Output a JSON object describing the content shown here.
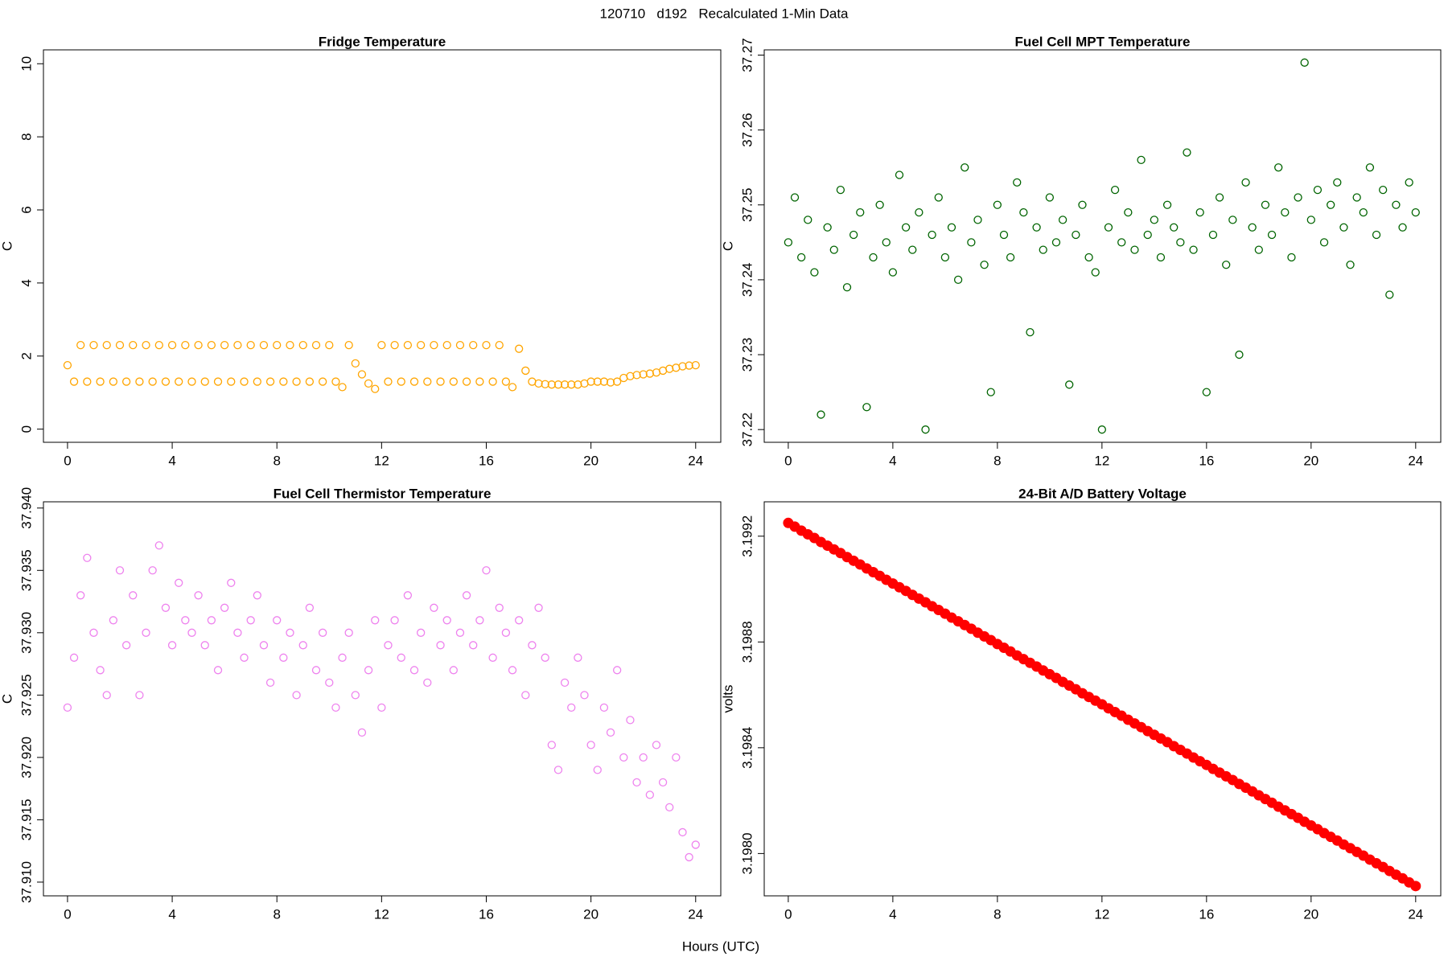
{
  "title": "120710   d192   Recalculated 1-Min Data",
  "x_label": "Hours (UTC)",
  "chart_data": [
    {
      "type": "scatter",
      "title": "Fridge Temperature",
      "y_label": "C",
      "color": "#ffa500",
      "xlim": [
        -0.92,
        24.96
      ],
      "xticks": [
        0,
        4,
        8,
        12,
        16,
        20,
        24
      ],
      "ylim": [
        -0.36,
        10.38
      ],
      "yticks": [
        0,
        2,
        4,
        6,
        8,
        10
      ],
      "x": [
        0,
        0.25,
        0.5,
        0.75,
        1,
        1.25,
        1.5,
        1.75,
        2,
        2.25,
        2.5,
        2.75,
        3,
        3.25,
        3.5,
        3.75,
        4,
        4.25,
        4.5,
        4.75,
        5,
        5.25,
        5.5,
        5.75,
        6,
        6.25,
        6.5,
        6.75,
        7,
        7.25,
        7.5,
        7.75,
        8,
        8.25,
        8.5,
        8.75,
        9,
        9.25,
        9.5,
        9.75,
        10,
        10.25,
        10.5,
        10.75,
        11,
        11.25,
        11.5,
        11.75,
        12,
        12.25,
        12.5,
        12.75,
        13,
        13.25,
        13.5,
        13.75,
        14,
        14.25,
        14.5,
        14.75,
        15,
        15.25,
        15.5,
        15.75,
        16,
        16.25,
        16.5,
        16.75,
        17,
        17.25,
        17.5,
        17.75,
        18,
        18.25,
        18.5,
        18.75,
        19,
        19.25,
        19.5,
        19.75,
        20,
        20.25,
        20.5,
        20.75,
        21,
        21.25,
        21.5,
        21.75,
        22,
        22.25,
        22.5,
        22.75,
        23,
        23.25,
        23.5,
        23.75,
        24
      ],
      "values": [
        1.75,
        1.3,
        2.3,
        1.3,
        2.3,
        1.3,
        2.3,
        1.3,
        2.3,
        1.3,
        2.3,
        1.3,
        2.3,
        1.3,
        2.3,
        1.3,
        2.3,
        1.3,
        2.3,
        1.3,
        2.3,
        1.3,
        2.3,
        1.3,
        2.3,
        1.3,
        2.3,
        1.3,
        2.3,
        1.3,
        2.3,
        1.3,
        2.3,
        1.3,
        2.3,
        1.3,
        2.3,
        1.3,
        2.3,
        1.3,
        2.3,
        1.3,
        1.15,
        2.3,
        1.8,
        1.5,
        1.25,
        1.1,
        2.3,
        1.3,
        2.3,
        1.3,
        2.3,
        1.3,
        2.3,
        1.3,
        2.3,
        1.3,
        2.3,
        1.3,
        2.3,
        1.3,
        2.3,
        1.3,
        2.3,
        1.3,
        2.3,
        1.3,
        1.15,
        2.2,
        1.6,
        1.3,
        1.25,
        1.23,
        1.22,
        1.22,
        1.22,
        1.22,
        1.22,
        1.25,
        1.3,
        1.3,
        1.3,
        1.28,
        1.3,
        1.4,
        1.45,
        1.48,
        1.5,
        1.52,
        1.55,
        1.6,
        1.65,
        1.68,
        1.72,
        1.74,
        1.75
      ]
    },
    {
      "type": "scatter",
      "title": "Fuel Cell MPT Temperature",
      "y_label": "C",
      "color": "#006400",
      "xlim": [
        -0.92,
        24.96
      ],
      "xticks": [
        0,
        4,
        8,
        12,
        16,
        20,
        24
      ],
      "ylim": [
        37.2183,
        37.2707
      ],
      "yticks": [
        37.22,
        37.23,
        37.24,
        37.25,
        37.26,
        37.27
      ],
      "x": [
        0,
        0.25,
        0.5,
        0.75,
        1,
        1.25,
        1.5,
        1.75,
        2,
        2.25,
        2.5,
        2.75,
        3,
        3.25,
        3.5,
        3.75,
        4,
        4.25,
        4.5,
        4.75,
        5,
        5.25,
        5.5,
        5.75,
        6,
        6.25,
        6.5,
        6.75,
        7,
        7.25,
        7.5,
        7.75,
        8,
        8.25,
        8.5,
        8.75,
        9,
        9.25,
        9.5,
        9.75,
        10,
        10.25,
        10.5,
        10.75,
        11,
        11.25,
        11.5,
        11.75,
        12,
        12.25,
        12.5,
        12.75,
        13,
        13.25,
        13.5,
        13.75,
        14,
        14.25,
        14.5,
        14.75,
        15,
        15.25,
        15.5,
        15.75,
        16,
        16.25,
        16.5,
        16.75,
        17,
        17.25,
        17.5,
        17.75,
        18,
        18.25,
        18.5,
        18.75,
        19,
        19.25,
        19.5,
        19.75,
        20,
        20.25,
        20.5,
        20.75,
        21,
        21.25,
        21.5,
        21.75,
        22,
        22.25,
        22.5,
        22.75,
        23,
        23.25,
        23.5,
        23.75,
        24
      ],
      "values": [
        37.245,
        37.251,
        37.243,
        37.248,
        37.241,
        37.222,
        37.247,
        37.244,
        37.252,
        37.239,
        37.246,
        37.249,
        37.223,
        37.243,
        37.25,
        37.245,
        37.241,
        37.254,
        37.247,
        37.244,
        37.249,
        37.22,
        37.246,
        37.251,
        37.243,
        37.247,
        37.24,
        37.255,
        37.245,
        37.248,
        37.242,
        37.225,
        37.25,
        37.246,
        37.243,
        37.253,
        37.249,
        37.233,
        37.247,
        37.244,
        37.251,
        37.245,
        37.248,
        37.226,
        37.246,
        37.25,
        37.243,
        37.241,
        37.22,
        37.247,
        37.252,
        37.245,
        37.249,
        37.244,
        37.256,
        37.246,
        37.248,
        37.243,
        37.25,
        37.247,
        37.245,
        37.257,
        37.244,
        37.249,
        37.225,
        37.246,
        37.251,
        37.242,
        37.248,
        37.23,
        37.253,
        37.247,
        37.244,
        37.25,
        37.246,
        37.255,
        37.249,
        37.243,
        37.251,
        37.269,
        37.248,
        37.252,
        37.245,
        37.25,
        37.253,
        37.247,
        37.242,
        37.251,
        37.249,
        37.255,
        37.246,
        37.252,
        37.238,
        37.25,
        37.247,
        37.253,
        37.249
      ]
    },
    {
      "type": "scatter",
      "title": "Fuel Cell Thermistor Temperature",
      "y_label": "C",
      "color": "#ee82ee",
      "xlim": [
        -0.92,
        24.96
      ],
      "xticks": [
        0,
        4,
        8,
        12,
        16,
        20,
        24
      ],
      "ylim": [
        37.9089,
        37.9405
      ],
      "yticks": [
        {
          "value": 37.91,
          "label": "37.910"
        },
        37.915,
        {
          "value": 37.92,
          "label": "37.920"
        },
        37.925,
        {
          "value": 37.93,
          "label": "37.930"
        },
        37.935,
        {
          "value": 37.94,
          "label": "37.940"
        }
      ],
      "x": [
        0,
        0.25,
        0.5,
        0.75,
        1,
        1.25,
        1.5,
        1.75,
        2,
        2.25,
        2.5,
        2.75,
        3,
        3.25,
        3.5,
        3.75,
        4,
        4.25,
        4.5,
        4.75,
        5,
        5.25,
        5.5,
        5.75,
        6,
        6.25,
        6.5,
        6.75,
        7,
        7.25,
        7.5,
        7.75,
        8,
        8.25,
        8.5,
        8.75,
        9,
        9.25,
        9.5,
        9.75,
        10,
        10.25,
        10.5,
        10.75,
        11,
        11.25,
        11.5,
        11.75,
        12,
        12.25,
        12.5,
        12.75,
        13,
        13.25,
        13.5,
        13.75,
        14,
        14.25,
        14.5,
        14.75,
        15,
        15.25,
        15.5,
        15.75,
        16,
        16.25,
        16.5,
        16.75,
        17,
        17.25,
        17.5,
        17.75,
        18,
        18.25,
        18.5,
        18.75,
        19,
        19.25,
        19.5,
        19.75,
        20,
        20.25,
        20.5,
        20.75,
        21,
        21.25,
        21.5,
        21.75,
        22,
        22.25,
        22.5,
        22.75,
        23,
        23.25,
        23.5,
        23.75,
        24
      ],
      "values": [
        37.924,
        37.928,
        37.933,
        37.936,
        37.93,
        37.927,
        37.925,
        37.931,
        37.935,
        37.929,
        37.933,
        37.925,
        37.93,
        37.935,
        37.937,
        37.932,
        37.929,
        37.934,
        37.931,
        37.93,
        37.933,
        37.929,
        37.931,
        37.927,
        37.932,
        37.934,
        37.93,
        37.928,
        37.931,
        37.933,
        37.929,
        37.926,
        37.931,
        37.928,
        37.93,
        37.925,
        37.929,
        37.932,
        37.927,
        37.93,
        37.926,
        37.924,
        37.928,
        37.93,
        37.925,
        37.922,
        37.927,
        37.931,
        37.924,
        37.929,
        37.931,
        37.928,
        37.933,
        37.927,
        37.93,
        37.926,
        37.932,
        37.929,
        37.931,
        37.927,
        37.93,
        37.933,
        37.929,
        37.931,
        37.935,
        37.928,
        37.932,
        37.93,
        37.927,
        37.931,
        37.925,
        37.929,
        37.932,
        37.928,
        37.921,
        37.919,
        37.926,
        37.924,
        37.928,
        37.925,
        37.921,
        37.919,
        37.924,
        37.922,
        37.927,
        37.92,
        37.923,
        37.918,
        37.92,
        37.917,
        37.921,
        37.918,
        37.916,
        37.92,
        37.914,
        37.912,
        37.913
      ]
    },
    {
      "type": "scatter",
      "title": "24-Bit A/D Battery Voltage",
      "y_label": "volts",
      "color": "#ff0000",
      "xlim": [
        -0.92,
        24.96
      ],
      "xticks": [
        0,
        4,
        8,
        12,
        16,
        20,
        24
      ],
      "ylim": [
        3.19784,
        3.19933
      ],
      "yticks": [
        {
          "value": 3.198,
          "label": "3.1980"
        },
        3.1984,
        3.1988,
        3.1992
      ],
      "x": [
        0,
        0.25,
        0.5,
        0.75,
        1,
        1.25,
        1.5,
        1.75,
        2,
        2.25,
        2.5,
        2.75,
        3,
        3.25,
        3.5,
        3.75,
        4,
        4.25,
        4.5,
        4.75,
        5,
        5.25,
        5.5,
        5.75,
        6,
        6.25,
        6.5,
        6.75,
        7,
        7.25,
        7.5,
        7.75,
        8,
        8.25,
        8.5,
        8.75,
        9,
        9.25,
        9.5,
        9.75,
        10,
        10.25,
        10.5,
        10.75,
        11,
        11.25,
        11.5,
        11.75,
        12,
        12.25,
        12.5,
        12.75,
        13,
        13.25,
        13.5,
        13.75,
        14,
        14.25,
        14.5,
        14.75,
        15,
        15.25,
        15.5,
        15.75,
        16,
        16.25,
        16.5,
        16.75,
        17,
        17.25,
        17.5,
        17.75,
        18,
        18.25,
        18.5,
        18.75,
        19,
        19.25,
        19.5,
        19.75,
        20,
        20.25,
        20.5,
        20.75,
        21,
        21.25,
        21.5,
        21.75,
        22,
        22.25,
        22.5,
        22.75,
        23,
        23.25,
        23.5,
        23.75,
        24
      ],
      "values": [
        3.19925,
        3.199236,
        3.199221,
        3.199207,
        3.199193,
        3.199178,
        3.199164,
        3.19915,
        3.199136,
        3.199121,
        3.199107,
        3.199093,
        3.199078,
        3.199064,
        3.19905,
        3.199035,
        3.199021,
        3.199007,
        3.198993,
        3.198978,
        3.198964,
        3.19895,
        3.198935,
        3.198921,
        3.198907,
        3.198892,
        3.198878,
        3.198864,
        3.19885,
        3.198835,
        3.198821,
        3.198807,
        3.198792,
        3.198778,
        3.198764,
        3.198749,
        3.198735,
        3.198721,
        3.198707,
        3.198692,
        3.198678,
        3.198664,
        3.198649,
        3.198635,
        3.198621,
        3.198606,
        3.198592,
        3.198578,
        3.198564,
        3.198549,
        3.198535,
        3.198521,
        3.198506,
        3.198492,
        3.198478,
        3.198463,
        3.198449,
        3.198435,
        3.198421,
        3.198406,
        3.198392,
        3.198378,
        3.198363,
        3.198349,
        3.198335,
        3.19832,
        3.198306,
        3.198292,
        3.198278,
        3.198263,
        3.198249,
        3.198235,
        3.19822,
        3.198206,
        3.198192,
        3.198177,
        3.198163,
        3.198149,
        3.198135,
        3.19812,
        3.198106,
        3.198092,
        3.198077,
        3.198063,
        3.198049,
        3.198034,
        3.19802,
        3.198006,
        3.197992,
        3.197977,
        3.197963,
        3.197949,
        3.197934,
        3.19792,
        3.197906,
        3.197891,
        3.197877
      ]
    }
  ]
}
